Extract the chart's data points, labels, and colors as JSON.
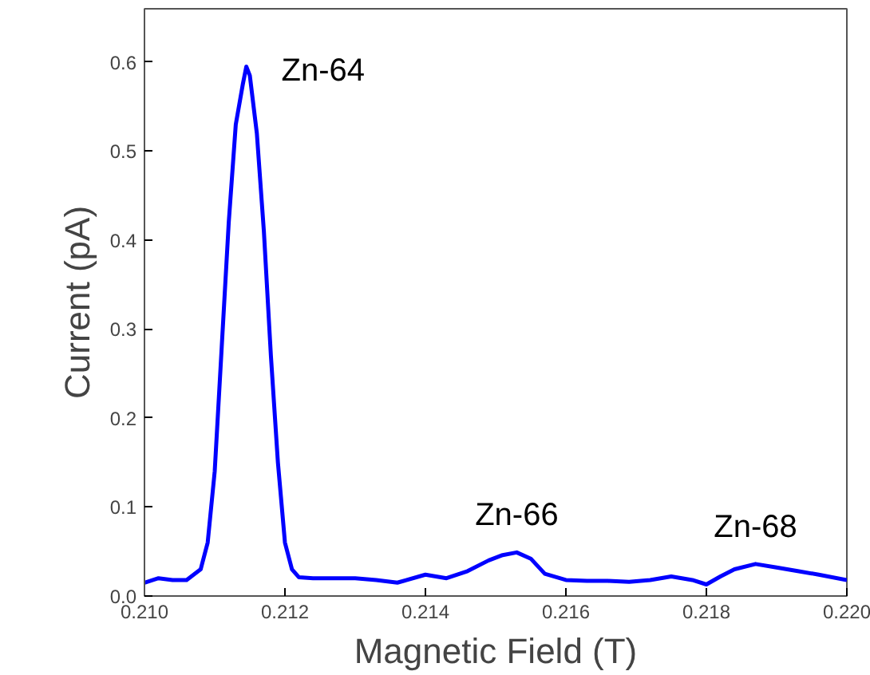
{
  "chart_data": {
    "type": "line",
    "xlabel": "Magnetic Field (T)",
    "ylabel": "Current (pA)",
    "x": [
      0.21,
      0.2102,
      0.2104,
      0.2106,
      0.2108,
      0.2109,
      0.211,
      0.2111,
      0.2112,
      0.2113,
      0.2114,
      0.21145,
      0.2115,
      0.2116,
      0.2117,
      0.2118,
      0.2119,
      0.212,
      0.2121,
      0.2122,
      0.2124,
      0.2127,
      0.213,
      0.2133,
      0.2136,
      0.214,
      0.2143,
      0.2146,
      0.2149,
      0.2151,
      0.2153,
      0.2155,
      0.2157,
      0.216,
      0.2163,
      0.2166,
      0.2169,
      0.2172,
      0.2175,
      0.2178,
      0.218,
      0.2182,
      0.2184,
      0.2187,
      0.219,
      0.2193,
      0.2196,
      0.22
    ],
    "series": [
      {
        "color": "#0000ff",
        "values": [
          0.015,
          0.02,
          0.018,
          0.018,
          0.03,
          0.06,
          0.14,
          0.28,
          0.42,
          0.53,
          0.575,
          0.595,
          0.585,
          0.52,
          0.41,
          0.27,
          0.15,
          0.06,
          0.03,
          0.021,
          0.02,
          0.02,
          0.02,
          0.018,
          0.015,
          0.024,
          0.02,
          0.028,
          0.04,
          0.046,
          0.049,
          0.042,
          0.025,
          0.018,
          0.017,
          0.017,
          0.016,
          0.018,
          0.022,
          0.018,
          0.013,
          0.022,
          0.03,
          0.036,
          0.032,
          0.028,
          0.024,
          0.018
        ]
      }
    ],
    "xlim": [
      0.21,
      0.22
    ],
    "xticks": [
      {
        "value": 0.21,
        "label": "0.210"
      },
      {
        "value": 0.212,
        "label": "0.212"
      },
      {
        "value": 0.214,
        "label": "0.214"
      },
      {
        "value": 0.216,
        "label": "0.216"
      },
      {
        "value": 0.218,
        "label": "0.218"
      },
      {
        "value": 0.22,
        "label": "0.220"
      }
    ],
    "ylim": [
      0,
      0.66
    ],
    "yticks": [
      {
        "value": 0,
        "label": "0.0"
      },
      0.1,
      0.2,
      0.3,
      0.4,
      0.5,
      0.6
    ],
    "annotations": [
      {
        "text": "Zn-64",
        "x": 0.21145,
        "y": 0.595
      },
      {
        "text": "Zn-66",
        "x": 0.2153,
        "y": 0.049
      },
      {
        "text": "Zn-68",
        "x": 0.2187,
        "y": 0.036
      }
    ],
    "tick_labels": "xy"
  }
}
